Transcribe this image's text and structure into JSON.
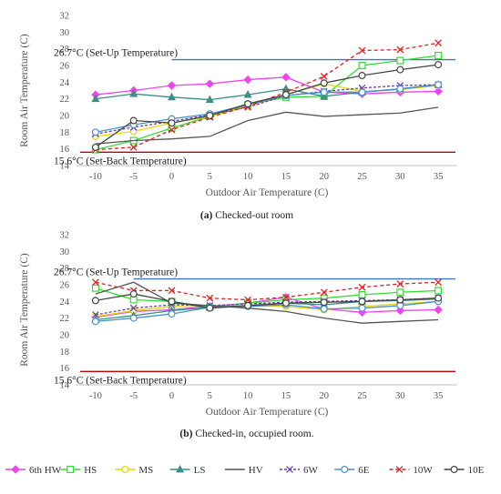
{
  "colors": {
    "setup_line": "#3f74c4",
    "setback_line": "#c00000",
    "axis": "#bfbfbf"
  },
  "legend": [
    {
      "name": "6th HW",
      "color": "#ee44ee",
      "marker": "diamond",
      "dash": ""
    },
    {
      "name": "HS",
      "color": "#33dd33",
      "marker": "square",
      "dash": ""
    },
    {
      "name": "MS",
      "color": "#e8d800",
      "marker": "circle",
      "dash": ""
    },
    {
      "name": "LS",
      "color": "#3a8f86",
      "marker": "triangle",
      "dash": ""
    },
    {
      "name": "HV",
      "color": "#555555",
      "marker": "none",
      "dash": ""
    },
    {
      "name": "6W",
      "color": "#6a3fb0",
      "marker": "x",
      "dash": "3,2"
    },
    {
      "name": "6E",
      "color": "#4a90d0",
      "marker": "circle",
      "dash": ""
    },
    {
      "name": "10W",
      "color": "#e02020",
      "marker": "x",
      "dash": "4,3"
    },
    {
      "name": "10E",
      "color": "#444444",
      "marker": "circle",
      "dash": ""
    }
  ],
  "chart_data": [
    {
      "type": "line",
      "caption_tag": "(a)",
      "caption_text": " Checked-out room",
      "xlabel": "Outdoor Air Temperature (C)",
      "ylabel": "Room Air Temperature (C)",
      "x": [
        -10,
        -5,
        0,
        5,
        10,
        15,
        20,
        25,
        30,
        35
      ],
      "x_ticks": [
        "-10",
        "-5",
        "0",
        "5",
        "10",
        "15",
        "20",
        "25",
        "30",
        "35"
      ],
      "ylim": [
        14,
        32
      ],
      "y_ticks": [
        "14",
        "16",
        "18",
        "20",
        "22",
        "24",
        "26",
        "28",
        "30",
        "32"
      ],
      "reference_lines": [
        {
          "y": 26.7,
          "label": "26.7°C (Set-Up Temperature)",
          "color": "#3f74c4",
          "x_start": 0,
          "x_end": 35
        },
        {
          "y": 15.6,
          "label": "15.6°C (Set-Back Temperature)",
          "color": "#c00000",
          "x_start": -10,
          "x_end": 35
        }
      ],
      "series": [
        {
          "name": "6th HW",
          "values": [
            22.5,
            23.0,
            23.6,
            23.8,
            24.3,
            24.6,
            22.8,
            22.6,
            22.8,
            22.9
          ]
        },
        {
          "name": "HS",
          "values": [
            15.9,
            17.0,
            18.5,
            19.9,
            21.3,
            22.2,
            22.3,
            26.0,
            26.6,
            27.2
          ]
        },
        {
          "name": "MS",
          "values": [
            17.5,
            18.1,
            19.1,
            19.9,
            21.1,
            22.5,
            23.8,
            22.9,
            23.1,
            23.6
          ]
        },
        {
          "name": "LS",
          "values": [
            22.0,
            22.6,
            22.2,
            21.9,
            22.5,
            23.2,
            22.3,
            22.8,
            23.2,
            23.7
          ]
        },
        {
          "name": "HV",
          "values": [
            16.6,
            17.0,
            17.2,
            17.5,
            19.4,
            20.4,
            19.9,
            20.1,
            20.3,
            21.0
          ]
        },
        {
          "name": "6W",
          "values": [
            17.8,
            18.6,
            19.3,
            20.1,
            21.0,
            22.4,
            22.9,
            23.3,
            23.6,
            23.7
          ]
        },
        {
          "name": "6E",
          "values": [
            18.0,
            18.9,
            19.6,
            20.2,
            21.3,
            22.4,
            22.8,
            22.8,
            23.2,
            23.7
          ]
        },
        {
          "name": "10W",
          "values": [
            15.9,
            16.2,
            18.3,
            19.8,
            21.1,
            22.8,
            24.7,
            27.8,
            27.9,
            28.7
          ]
        },
        {
          "name": "10E",
          "values": [
            16.2,
            19.4,
            19.1,
            20.0,
            21.4,
            22.5,
            23.9,
            24.8,
            25.5,
            26.1
          ]
        }
      ]
    },
    {
      "type": "line",
      "caption_tag": "(b)",
      "caption_text": " Checked-in, occupied room.",
      "xlabel": "Outdoor Air Temperature (C)",
      "ylabel": "Room Air Temperature (C)",
      "x": [
        -10,
        -5,
        0,
        5,
        10,
        15,
        20,
        25,
        30,
        35
      ],
      "x_ticks": [
        "-10",
        "-5",
        "0",
        "5",
        "10",
        "15",
        "20",
        "25",
        "30",
        "35"
      ],
      "ylim": [
        14,
        32
      ],
      "y_ticks": [
        "14",
        "16",
        "18",
        "20",
        "22",
        "24",
        "26",
        "28",
        "30",
        "32"
      ],
      "reference_lines": [
        {
          "y": 26.7,
          "label": "26.7°C (Set-Up Temperature)",
          "color": "#3f74c4",
          "x_start": -5,
          "x_end": 35
        },
        {
          "y": 15.6,
          "label": "15.6°C (Set-Back Temperature)",
          "color": "#c00000",
          "x_start": -10,
          "x_end": 35
        }
      ],
      "series": [
        {
          "name": "6th HW",
          "values": [
            22.1,
            22.8,
            23.0,
            23.4,
            23.8,
            24.5,
            23.1,
            22.7,
            22.9,
            23.0
          ]
        },
        {
          "name": "HS",
          "values": [
            25.6,
            24.2,
            24.0,
            23.3,
            23.8,
            24.2,
            24.4,
            24.8,
            25.1,
            25.3
          ]
        },
        {
          "name": "MS",
          "values": [
            22.2,
            22.9,
            23.4,
            23.3,
            23.5,
            23.4,
            23.0,
            23.4,
            23.7,
            24.0
          ]
        },
        {
          "name": "LS",
          "values": [
            21.8,
            22.3,
            22.9,
            23.3,
            23.5,
            23.8,
            23.6,
            24.0,
            24.1,
            24.3
          ]
        },
        {
          "name": "HV",
          "values": [
            24.9,
            26.3,
            23.8,
            23.5,
            23.2,
            22.8,
            22.0,
            21.4,
            21.6,
            21.8
          ]
        },
        {
          "name": "6W",
          "values": [
            22.4,
            23.2,
            23.6,
            23.5,
            23.7,
            23.9,
            24.0,
            24.1,
            24.2,
            24.4
          ]
        },
        {
          "name": "6E",
          "values": [
            21.6,
            22.0,
            22.5,
            23.3,
            23.4,
            23.6,
            23.1,
            23.2,
            23.5,
            24.0
          ]
        },
        {
          "name": "10W",
          "values": [
            26.3,
            25.3,
            25.3,
            24.4,
            24.2,
            24.5,
            25.1,
            25.7,
            26.1,
            26.3
          ]
        },
        {
          "name": "10E",
          "values": [
            24.1,
            24.9,
            24.0,
            23.2,
            23.5,
            23.8,
            23.9,
            24.0,
            24.2,
            24.4
          ]
        }
      ]
    }
  ]
}
